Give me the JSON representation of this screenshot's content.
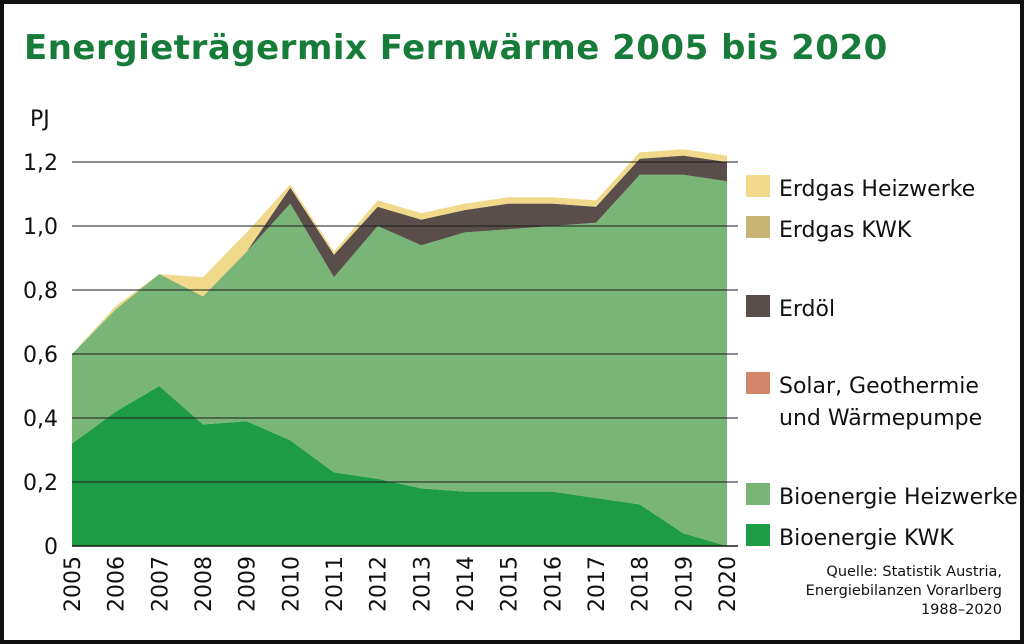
{
  "chart_data": {
    "type": "area",
    "stacked": true,
    "title": "Energieträgermix Fernwärme 2005 bis 2020",
    "ylabel": "PJ",
    "ylim": [
      0,
      1.2
    ],
    "y_ticks": [
      "0",
      "0,2",
      "0,4",
      "0,6",
      "0,8",
      "1,0",
      "1,2"
    ],
    "y_tick_values": [
      0,
      0.2,
      0.4,
      0.6,
      0.8,
      1.0,
      1.2
    ],
    "x": [
      "2005",
      "2006",
      "2007",
      "2008",
      "2009",
      "2010",
      "2011",
      "2012",
      "2013",
      "2014",
      "2015",
      "2016",
      "2017",
      "2018",
      "2019",
      "2020"
    ],
    "grid": "horizontal",
    "legend_position": "right",
    "series": [
      {
        "name": "Bioenergie KWK",
        "color": "#1e9b45",
        "values": [
          0.32,
          0.42,
          0.5,
          0.38,
          0.39,
          0.33,
          0.23,
          0.21,
          0.18,
          0.17,
          0.17,
          0.17,
          0.15,
          0.13,
          0.04,
          0.0
        ]
      },
      {
        "name": "Bioenergie Heizwerke",
        "color": "#79b576",
        "values": [
          0.28,
          0.32,
          0.35,
          0.4,
          0.53,
          0.74,
          0.61,
          0.79,
          0.76,
          0.81,
          0.82,
          0.83,
          0.86,
          1.03,
          1.12,
          1.14
        ]
      },
      {
        "name": "Solar, Geothermie und Wärmepumpe",
        "color": "#d4866a",
        "values": [
          0,
          0,
          0,
          0,
          0,
          0,
          0,
          0,
          0,
          0,
          0,
          0,
          0,
          0,
          0,
          0
        ]
      },
      {
        "name": "Erdöl",
        "color": "#5a4e4a",
        "values": [
          0.0,
          0.0,
          0.0,
          0.0,
          0.0,
          0.05,
          0.07,
          0.06,
          0.08,
          0.07,
          0.08,
          0.07,
          0.05,
          0.05,
          0.06,
          0.06
        ]
      },
      {
        "name": "Erdgas KWK",
        "color": "#c8b472",
        "values": [
          0,
          0,
          0,
          0,
          0,
          0,
          0,
          0,
          0,
          0,
          0,
          0,
          0,
          0,
          0,
          0
        ]
      },
      {
        "name": "Erdgas Heizwerke",
        "color": "#f0d98a",
        "values": [
          0.0,
          0.01,
          0.0,
          0.06,
          0.06,
          0.01,
          0.01,
          0.02,
          0.02,
          0.02,
          0.02,
          0.02,
          0.02,
          0.02,
          0.02,
          0.02
        ]
      }
    ],
    "legend": [
      {
        "label_lines": [
          "Erdgas Heizwerke"
        ],
        "color": "#f0d98a"
      },
      {
        "label_lines": [
          "Erdgas KWK"
        ],
        "color": "#c8b472"
      },
      {
        "label_lines": [
          "Erdöl"
        ],
        "color": "#5a4e4a"
      },
      {
        "label_lines": [
          "Solar, Geothermie",
          "und Wärmepumpe"
        ],
        "color": "#d4866a"
      },
      {
        "label_lines": [
          "Bioenergie Heizwerke"
        ],
        "color": "#79b576"
      },
      {
        "label_lines": [
          "Bioenergie KWK"
        ],
        "color": "#1e9b45"
      }
    ],
    "source": [
      "Quelle: Statistik Austria,",
      "Energiebilanzen Vorarlberg",
      "1988–2020"
    ]
  },
  "colors": {
    "title": "#177b3a",
    "gridline": "#1a1a1a",
    "frame": "#111111"
  }
}
